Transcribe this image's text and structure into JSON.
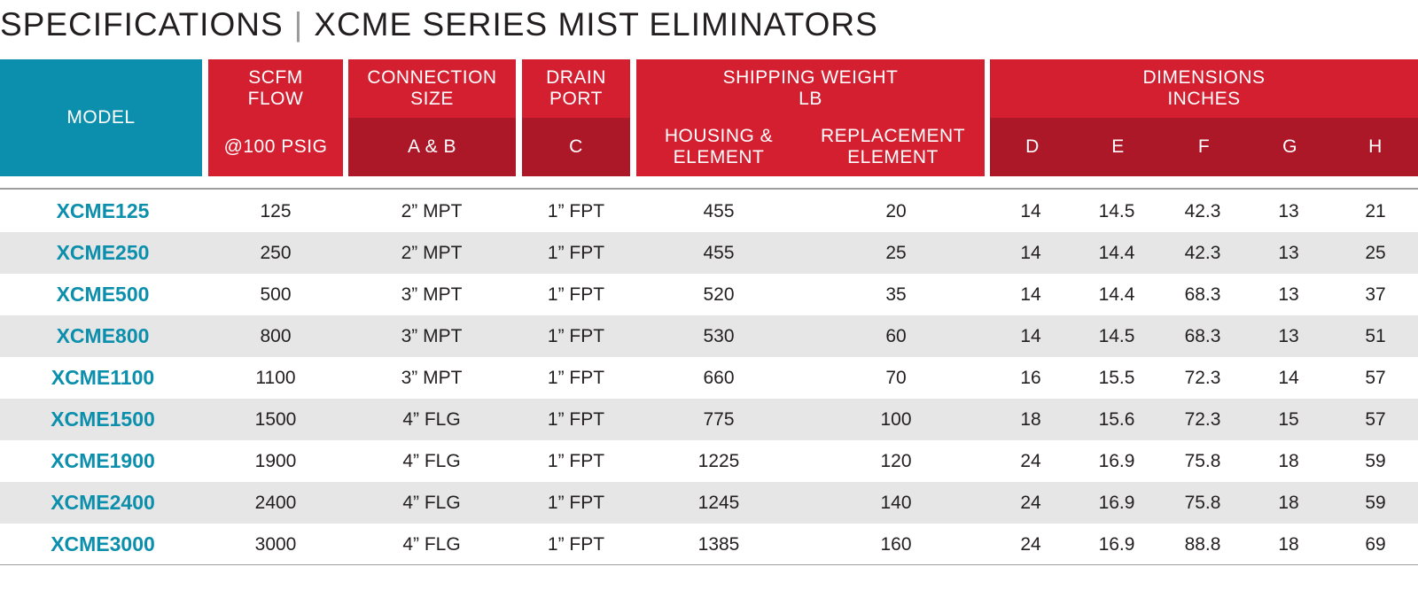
{
  "title": {
    "left": "SPECIFICATIONS",
    "separator": "|",
    "right": "XCME SERIES MIST ELIMINATORS"
  },
  "colors": {
    "teal": "#0b8fac",
    "red": "#d31f30",
    "dark_red": "#ad1829",
    "alt_row": "#e6e6e6"
  },
  "headers": {
    "model": "MODEL",
    "flow_top_1": "SCFM",
    "flow_top_2": "FLOW",
    "flow_sub": "@100 PSIG",
    "conn_top_1": "CONNECTION",
    "conn_top_2": "SIZE",
    "conn_sub": "A & B",
    "drain_top_1": "DRAIN",
    "drain_top_2": "PORT",
    "drain_sub": "C",
    "weight_top_1": "SHIPPING WEIGHT",
    "weight_top_2": "LB",
    "weight_sub_housing_1": "HOUSING &",
    "weight_sub_housing_2": "ELEMENT",
    "weight_sub_repl_1": "REPLACEMENT",
    "weight_sub_repl_2": "ELEMENT",
    "dim_top_1": "DIMENSIONS",
    "dim_top_2": "INCHES",
    "dim_d": "D",
    "dim_e": "E",
    "dim_f": "F",
    "dim_g": "G",
    "dim_h": "H"
  },
  "rows": [
    {
      "model": "XCME125",
      "flow": "125",
      "conn": "2” MPT",
      "drain": "1” FPT",
      "housing": "455",
      "repl": "20",
      "d": "14",
      "e": "14.5",
      "f": "42.3",
      "g": "13",
      "h": "21"
    },
    {
      "model": "XCME250",
      "flow": "250",
      "conn": "2” MPT",
      "drain": "1” FPT",
      "housing": "455",
      "repl": "25",
      "d": "14",
      "e": "14.4",
      "f": "42.3",
      "g": "13",
      "h": "25"
    },
    {
      "model": "XCME500",
      "flow": "500",
      "conn": "3” MPT",
      "drain": "1” FPT",
      "housing": "520",
      "repl": "35",
      "d": "14",
      "e": "14.4",
      "f": "68.3",
      "g": "13",
      "h": "37"
    },
    {
      "model": "XCME800",
      "flow": "800",
      "conn": "3” MPT",
      "drain": "1” FPT",
      "housing": "530",
      "repl": "60",
      "d": "14",
      "e": "14.5",
      "f": "68.3",
      "g": "13",
      "h": "51"
    },
    {
      "model": "XCME1100",
      "flow": "1100",
      "conn": "3” MPT",
      "drain": "1” FPT",
      "housing": "660",
      "repl": "70",
      "d": "16",
      "e": "15.5",
      "f": "72.3",
      "g": "14",
      "h": "57"
    },
    {
      "model": "XCME1500",
      "flow": "1500",
      "conn": "4” FLG",
      "drain": "1” FPT",
      "housing": "775",
      "repl": "100",
      "d": "18",
      "e": "15.6",
      "f": "72.3",
      "g": "15",
      "h": "57"
    },
    {
      "model": "XCME1900",
      "flow": "1900",
      "conn": "4” FLG",
      "drain": "1” FPT",
      "housing": "1225",
      "repl": "120",
      "d": "24",
      "e": "16.9",
      "f": "75.8",
      "g": "18",
      "h": "59"
    },
    {
      "model": "XCME2400",
      "flow": "2400",
      "conn": "4” FLG",
      "drain": "1” FPT",
      "housing": "1245",
      "repl": "140",
      "d": "24",
      "e": "16.9",
      "f": "75.8",
      "g": "18",
      "h": "59"
    },
    {
      "model": "XCME3000",
      "flow": "3000",
      "conn": "4” FLG",
      "drain": "1” FPT",
      "housing": "1385",
      "repl": "160",
      "d": "24",
      "e": "16.9",
      "f": "88.8",
      "g": "18",
      "h": "69"
    }
  ]
}
